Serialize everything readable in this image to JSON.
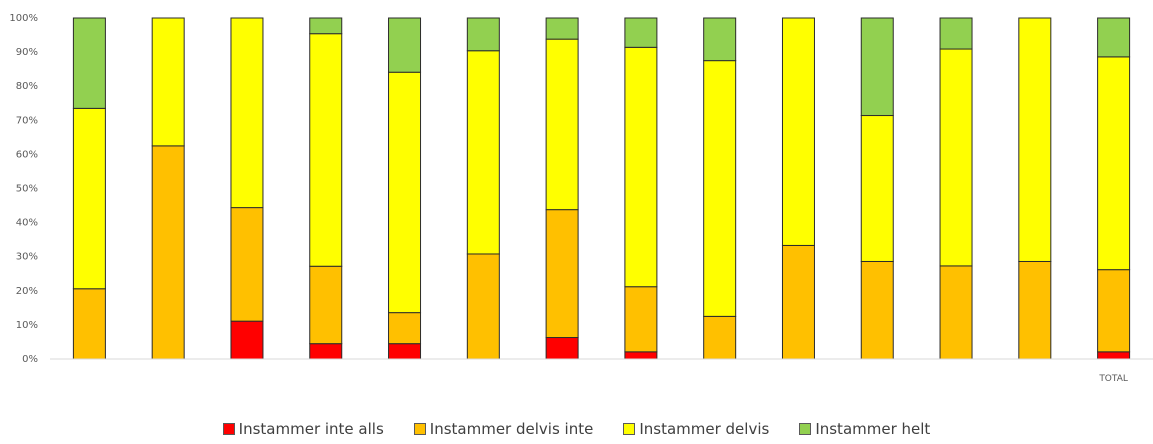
{
  "chart_data": {
    "type": "bar",
    "stacked": true,
    "percent": true,
    "categories": [
      "",
      "",
      "",
      "",
      "",
      "",
      "",
      "",
      "",
      "",
      "",
      "",
      "",
      "TOTAL"
    ],
    "series": [
      {
        "name": "Instammer inte alls",
        "color": "#ff0000",
        "values": [
          0,
          0,
          11.1,
          4.5,
          4.5,
          0,
          6.3,
          2.1,
          0,
          0,
          0,
          0,
          0,
          2.1
        ]
      },
      {
        "name": "Instammer delvis inte",
        "color": "#ffc000",
        "values": [
          20.6,
          62.5,
          33.3,
          22.7,
          9.1,
          30.8,
          37.5,
          19.1,
          12.5,
          33.3,
          28.6,
          27.3,
          28.6,
          24.1
        ]
      },
      {
        "name": "Instammer delvis",
        "color": "#ffff00",
        "values": [
          52.9,
          37.5,
          55.6,
          68.2,
          70.5,
          59.6,
          50.0,
          70.2,
          75.0,
          66.7,
          42.8,
          63.6,
          71.4,
          62.4
        ]
      },
      {
        "name": "Instammer helt",
        "color": "#92d050",
        "values": [
          26.5,
          0,
          0,
          4.6,
          15.9,
          9.6,
          6.2,
          8.6,
          12.5,
          0,
          28.6,
          9.1,
          0,
          11.4
        ]
      }
    ],
    "yticks": [
      "0%",
      "10%",
      "20%",
      "30%",
      "40%",
      "50%",
      "60%",
      "70%",
      "80%",
      "90%",
      "100%"
    ],
    "ylim": [
      0,
      100
    ],
    "gridlines": false,
    "legend_position": "bottom"
  }
}
